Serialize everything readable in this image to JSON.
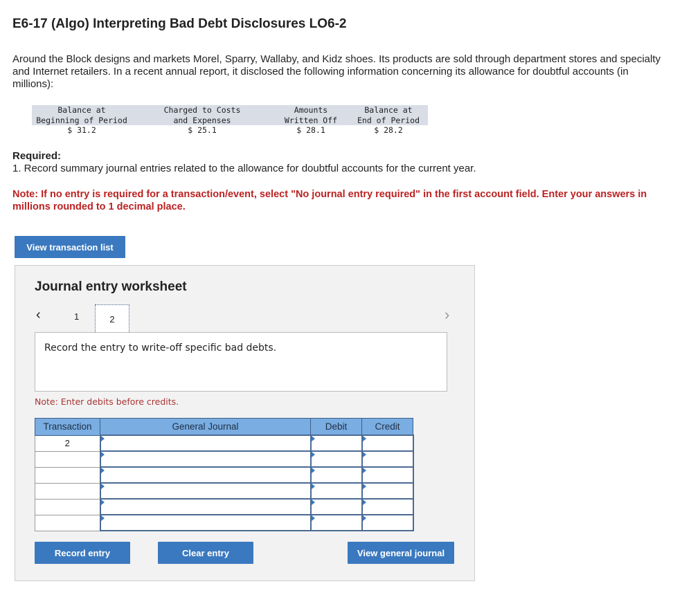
{
  "title": "E6-17 (Algo) Interpreting Bad Debt Disclosures LO6-2",
  "intro": "Around the Block designs and markets Morel, Sparry, Wallaby, and Kidz shoes. Its products are sold through department stores and specialty and Internet retailers. In a recent annual report, it disclosed the following information concerning its allowance for doubtful accounts (in millions):",
  "disclosure": {
    "headers": [
      [
        "Balance at",
        "Beginning of Period"
      ],
      [
        "Charged to Costs",
        "and Expenses"
      ],
      [
        "Amounts",
        "Written Off"
      ],
      [
        "Balance at",
        "End of Period"
      ]
    ],
    "values": [
      "$ 31.2",
      "$ 25.1",
      "$ 28.1",
      "$ 28.2"
    ]
  },
  "required_label": "Required:",
  "required_text": "1. Record summary journal entries related to the allowance for doubtful accounts for the current year.",
  "note": "Note: If no entry is required for a transaction/event, select \"No journal entry required\" in the first account field. Enter your answers in millions rounded to 1 decimal place.",
  "view_transaction_list": "View transaction list",
  "worksheet": {
    "title": "Journal entry worksheet",
    "pages": [
      "1",
      "2"
    ],
    "current_page": "2",
    "prompt": "Record the entry to write-off specific bad debts.",
    "note": "Note: Enter debits before credits.",
    "columns": [
      "Transaction",
      "General Journal",
      "Debit",
      "Credit"
    ],
    "rows": [
      {
        "transaction": "2"
      },
      {
        "transaction": ""
      },
      {
        "transaction": ""
      },
      {
        "transaction": ""
      },
      {
        "transaction": ""
      },
      {
        "transaction": ""
      }
    ],
    "record_entry": "Record entry",
    "clear_entry": "Clear entry",
    "view_general_journal": "View general journal"
  }
}
